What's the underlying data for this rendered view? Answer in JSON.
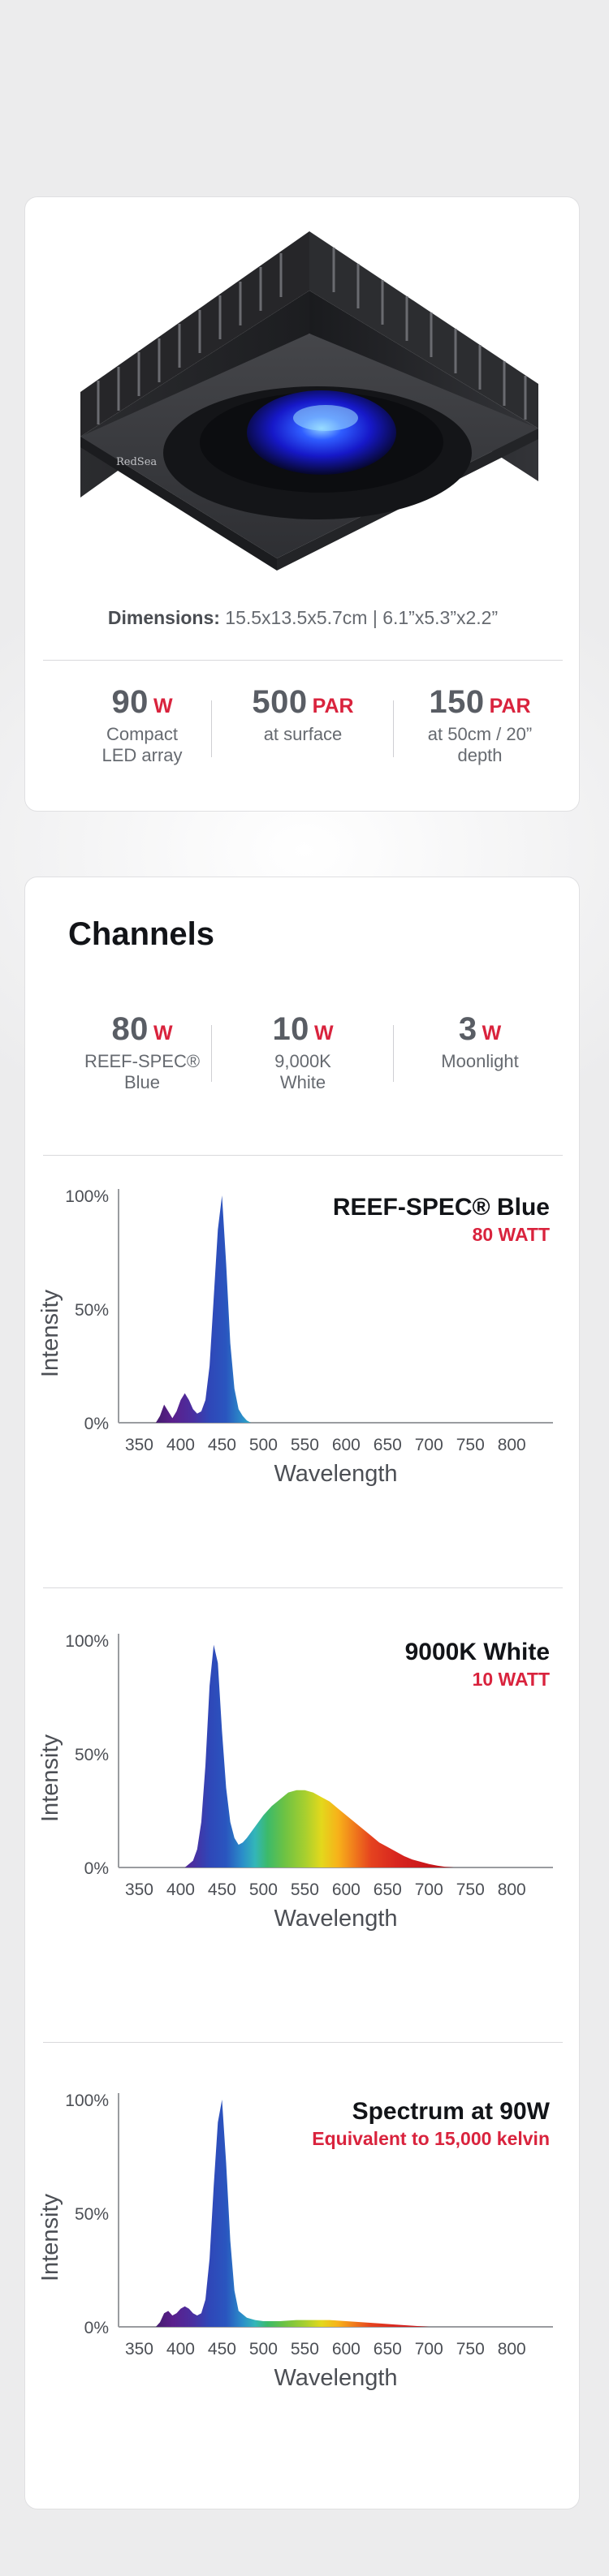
{
  "product": {
    "brand_mark": "RedSea",
    "dimensions_label": "Dimensions:",
    "dimensions_value": "15.5x13.5x5.7cm |  6.1”x5.3”x2.2”",
    "stats": [
      {
        "value": "90",
        "unit": "W",
        "label_line1": "Compact",
        "label_line2": "LED array"
      },
      {
        "value": "500",
        "unit": "PAR",
        "label_line1": "at surface",
        "label_line2": ""
      },
      {
        "value": "150",
        "unit": "PAR",
        "label_line1": "at 50cm / 20”",
        "label_line2": "depth"
      }
    ]
  },
  "channels": {
    "title": "Channels",
    "stats": [
      {
        "value": "80",
        "unit": "W",
        "label_line1": "REEF-SPEC®",
        "label_line2": "Blue"
      },
      {
        "value": "10",
        "unit": "W",
        "label_line1": "9,000K",
        "label_line2": "White"
      },
      {
        "value": "3",
        "unit": "W",
        "label_line1": "Moonlight",
        "label_line2": ""
      }
    ]
  },
  "colors": {
    "accent": "#d9233d",
    "text": "#595d64",
    "title": "#121418"
  },
  "chart_data": [
    {
      "type": "area",
      "title": "REEF-SPEC® Blue",
      "subtitle": "80 WATT",
      "xlabel": "Wavelength",
      "ylabel": "Intensity",
      "x_ticks": [
        "350",
        "400",
        "450",
        "500",
        "550",
        "600",
        "650",
        "700",
        "750",
        "800"
      ],
      "y_ticks": [
        "0%",
        "50%",
        "100%"
      ],
      "xlim": [
        325,
        840
      ],
      "ylim": [
        0,
        100
      ],
      "x": [
        370,
        375,
        380,
        385,
        390,
        395,
        400,
        405,
        410,
        415,
        420,
        425,
        430,
        435,
        440,
        445,
        450,
        455,
        460,
        465,
        470,
        475,
        480,
        485
      ],
      "y": [
        0,
        3,
        8,
        5,
        2,
        5,
        10,
        13,
        10,
        6,
        4,
        5,
        10,
        25,
        55,
        85,
        100,
        70,
        35,
        15,
        6,
        3,
        1,
        0
      ]
    },
    {
      "type": "area",
      "title": "9000K White",
      "subtitle": "10 WATT",
      "xlabel": "Wavelength",
      "ylabel": "Intensity",
      "x_ticks": [
        "350",
        "400",
        "450",
        "500",
        "550",
        "600",
        "650",
        "700",
        "750",
        "800"
      ],
      "y_ticks": [
        "0%",
        "50%",
        "100%"
      ],
      "xlim": [
        325,
        840
      ],
      "ylim": [
        0,
        100
      ],
      "x": [
        405,
        415,
        420,
        425,
        430,
        435,
        440,
        445,
        450,
        455,
        460,
        465,
        470,
        475,
        480,
        490,
        500,
        510,
        520,
        530,
        540,
        550,
        560,
        570,
        580,
        590,
        600,
        610,
        620,
        630,
        640,
        650,
        660,
        670,
        680,
        690,
        700,
        710,
        720,
        730
      ],
      "y": [
        0,
        3,
        8,
        20,
        45,
        80,
        98,
        90,
        60,
        35,
        20,
        13,
        10,
        11,
        13,
        18,
        23,
        27,
        30,
        33,
        34,
        34,
        33,
        31,
        29,
        26,
        23,
        20,
        17,
        14,
        11,
        9,
        7,
        5,
        3.5,
        2.5,
        1.5,
        0.8,
        0.3,
        0
      ]
    },
    {
      "type": "area",
      "title": "Spectrum at 90W",
      "subtitle": "Equivalent to 15,000 kelvin",
      "xlabel": "Wavelength",
      "ylabel": "Intensity",
      "x_ticks": [
        "350",
        "400",
        "450",
        "500",
        "550",
        "600",
        "650",
        "700",
        "750",
        "800"
      ],
      "y_ticks": [
        "0%",
        "50%",
        "100%"
      ],
      "xlim": [
        325,
        840
      ],
      "ylim": [
        0,
        100
      ],
      "x": [
        370,
        375,
        380,
        385,
        390,
        395,
        400,
        405,
        410,
        415,
        420,
        425,
        430,
        435,
        440,
        445,
        450,
        455,
        460,
        465,
        470,
        480,
        490,
        500,
        520,
        540,
        560,
        580,
        600,
        620,
        640,
        660,
        680,
        700
      ],
      "y": [
        0,
        2,
        6,
        7,
        5,
        6,
        8,
        9,
        8,
        6,
        5,
        6,
        12,
        30,
        62,
        90,
        100,
        72,
        38,
        16,
        7,
        4,
        3,
        2.5,
        2.5,
        3,
        3,
        3,
        2.5,
        2,
        1.5,
        1,
        0.5,
        0
      ]
    }
  ]
}
